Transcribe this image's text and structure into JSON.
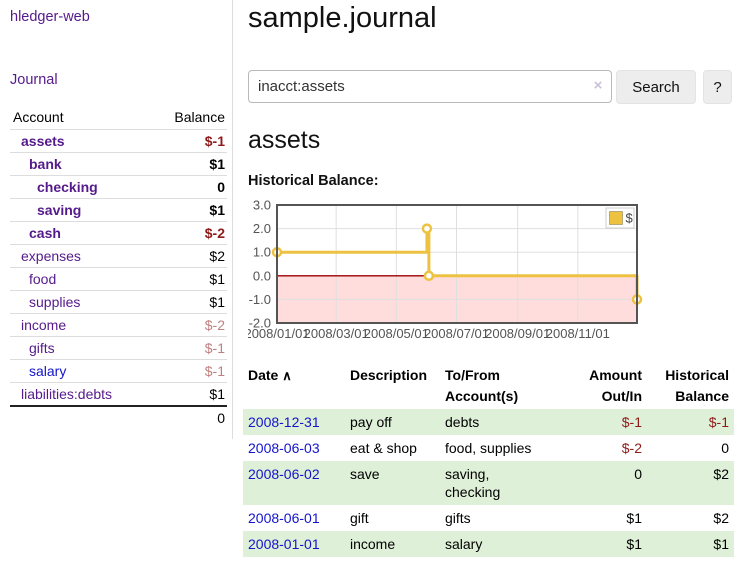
{
  "app": {
    "brand": "hledger-web"
  },
  "sidebar": {
    "journal_link": "Journal",
    "accounts": {
      "account_header": "Account",
      "balance_header": "Balance",
      "rows": [
        {
          "name": "assets",
          "balance": "$-1"
        },
        {
          "name": "bank",
          "balance": "$1"
        },
        {
          "name": "checking",
          "balance": "0"
        },
        {
          "name": "saving",
          "balance": "$1"
        },
        {
          "name": "cash",
          "balance": "$-2"
        },
        {
          "name": "expenses",
          "balance": "$2"
        },
        {
          "name": "food",
          "balance": "$1"
        },
        {
          "name": "supplies",
          "balance": "$1"
        },
        {
          "name": "income",
          "balance": "$-2"
        },
        {
          "name": "gifts",
          "balance": "$-1"
        },
        {
          "name": "salary",
          "balance": "$-1"
        },
        {
          "name": "liabilities:debts",
          "balance": "$1"
        }
      ],
      "total": "0"
    }
  },
  "main": {
    "title": "sample.journal",
    "search": {
      "value": "inacct:assets",
      "clear_icon": "×",
      "search_button": "Search",
      "help_button": "?"
    },
    "account_heading": "assets",
    "chart_label": "Historical Balance:"
  },
  "register": {
    "headers": {
      "date": "Date",
      "sort_icon": "∧",
      "description": "Description",
      "accounts": "To/From Account(s)",
      "amount": "Amount Out/In",
      "balance": "Historical Balance"
    },
    "rows": [
      {
        "date": "2008-12-31",
        "description": "pay off",
        "accounts": "debts",
        "amount": "$-1",
        "balance": "$-1"
      },
      {
        "date": "2008-06-03",
        "description": "eat & shop",
        "accounts": "food, supplies",
        "amount": "$-2",
        "balance": "0"
      },
      {
        "date": "2008-06-02",
        "description": "save",
        "accounts": "saving, checking",
        "amount": "0",
        "balance": "$2"
      },
      {
        "date": "2008-06-01",
        "description": "gift",
        "accounts": "gifts",
        "amount": "$1",
        "balance": "$2"
      },
      {
        "date": "2008-01-01",
        "description": "income",
        "accounts": "salary",
        "amount": "$1",
        "balance": "$1"
      }
    ]
  },
  "chart_data": {
    "type": "line",
    "title": "Historical Balance:",
    "xlim": [
      "2008-01-01",
      "2008-12-31"
    ],
    "ylim": [
      -2,
      3
    ],
    "y_ticks": [
      "3.0",
      "2.0",
      "1.0",
      "0.0",
      "-1.0",
      "-2.0"
    ],
    "x_ticks": [
      {
        "pos": "2008-01-01",
        "label": "2008/01/01"
      },
      {
        "pos": "2008-03-01",
        "label": "2008/03/01"
      },
      {
        "pos": "2008-05-01",
        "label": "2008/05/01"
      },
      {
        "pos": "2008-07-01",
        "label": "2008/07/01"
      },
      {
        "pos": "2008-09-01",
        "label": "2008/09/01"
      },
      {
        "pos": "2008-11-01",
        "label": "2008/11/01"
      }
    ],
    "series": [
      {
        "name": "$",
        "color": "#edc240",
        "step": true,
        "points": [
          [
            "2008-01-01",
            1
          ],
          [
            "2008-06-01",
            2
          ],
          [
            "2008-06-03",
            0
          ],
          [
            "2008-12-31",
            -1
          ]
        ]
      }
    ],
    "legend": {
      "label": "$",
      "position": "top-right"
    },
    "grid": true,
    "negative_region_fill": "#ffdddd",
    "zero_line_color": "#9e0000",
    "border_color": "#545454",
    "tick_color": "#545454"
  },
  "colors": {
    "accent_purple": "#551a8b",
    "link_blue": "#1414cc",
    "negative_strong": "#8e1a1a",
    "negative_faded": "#c08080",
    "row_green": "#dff0d8",
    "series_yellow": "#edc240"
  }
}
